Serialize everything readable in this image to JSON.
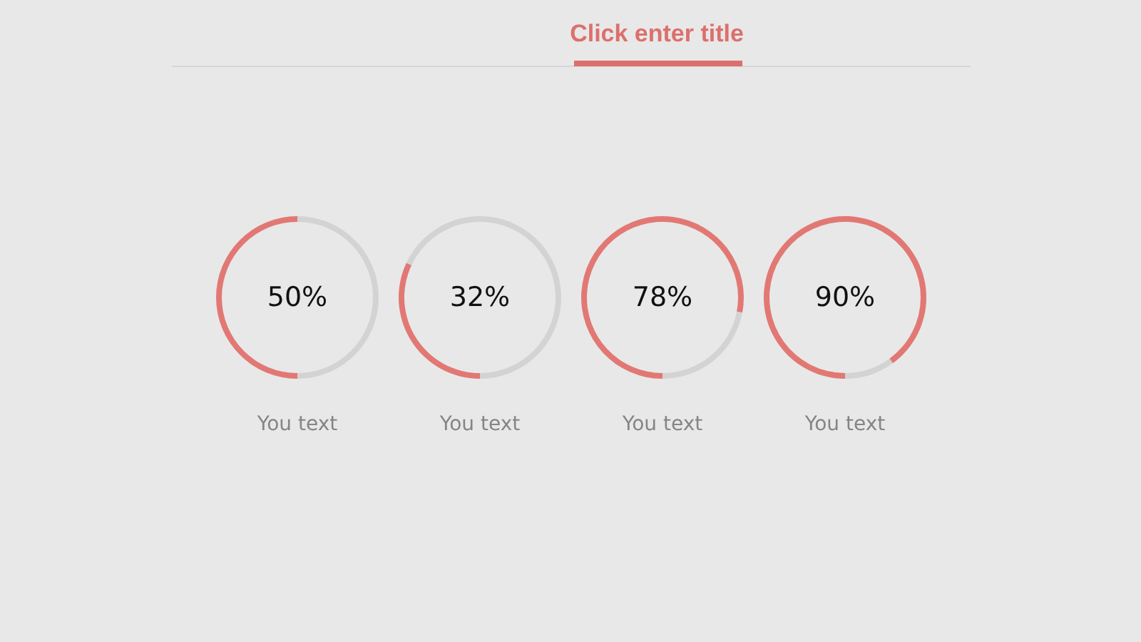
{
  "chart_data": [
    {
      "type": "other",
      "title": "Click enter title"
    },
    {
      "type": "donut",
      "title": "You text",
      "categories": [
        null,
        null
      ],
      "values": [
        50,
        50
      ],
      "colors": [
        "#e27873",
        "#d3d3d3"
      ],
      "annotations": [
        "50%"
      ]
    },
    {
      "type": "donut",
      "title": "You text",
      "categories": [
        null,
        null
      ],
      "values": [
        32,
        68
      ],
      "colors": [
        "#e27873",
        "#d3d3d3"
      ],
      "annotations": [
        "32%"
      ]
    },
    {
      "type": "donut",
      "title": "You text",
      "categories": [
        null,
        null
      ],
      "values": [
        78,
        22
      ],
      "colors": [
        "#e27873",
        "#d3d3d3"
      ],
      "annotations": [
        "78%"
      ]
    },
    {
      "type": "donut",
      "title": "You text",
      "categories": [
        null,
        null
      ],
      "values": [
        90,
        10
      ],
      "colors": [
        "#e27873",
        "#d3d3d3"
      ],
      "annotations": [
        "90%"
      ]
    }
  ]
}
